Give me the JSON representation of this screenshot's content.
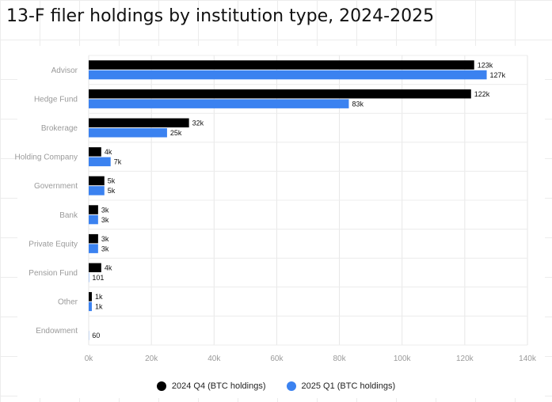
{
  "chart_data": {
    "type": "bar",
    "orientation": "horizontal",
    "title": "13-F filer holdings by institution type, 2024-2025",
    "categories": [
      "Advisor",
      "Hedge Fund",
      "Brokerage",
      "Holding Company",
      "Government",
      "Bank",
      "Private Equity",
      "Pension Fund",
      "Other",
      "Endowment"
    ],
    "series": [
      {
        "name": "2024 Q4 (BTC holdings)",
        "color": "#000000",
        "values": [
          123000,
          122000,
          32000,
          4000,
          5000,
          3000,
          3000,
          4000,
          1000,
          0
        ],
        "labels": [
          "123k",
          "122k",
          "32k",
          "4k",
          "5k",
          "3k",
          "3k",
          "4k",
          "1k",
          ""
        ]
      },
      {
        "name": "2025 Q1 (BTC holdings)",
        "color": "#3b82f0",
        "values": [
          127000,
          83000,
          25000,
          7000,
          5000,
          3000,
          3000,
          101,
          1000,
          60
        ],
        "labels": [
          "127k",
          "83k",
          "25k",
          "7k",
          "5k",
          "3k",
          "3k",
          "101",
          "1k",
          "60"
        ]
      }
    ],
    "xlim": [
      0,
      140000
    ],
    "xticks": [
      0,
      20000,
      40000,
      60000,
      80000,
      100000,
      120000,
      140000
    ],
    "xtick_labels": [
      "0k",
      "20k",
      "40k",
      "60k",
      "80k",
      "100k",
      "120k",
      "140k"
    ],
    "grid": true,
    "legend_position": "bottom"
  }
}
